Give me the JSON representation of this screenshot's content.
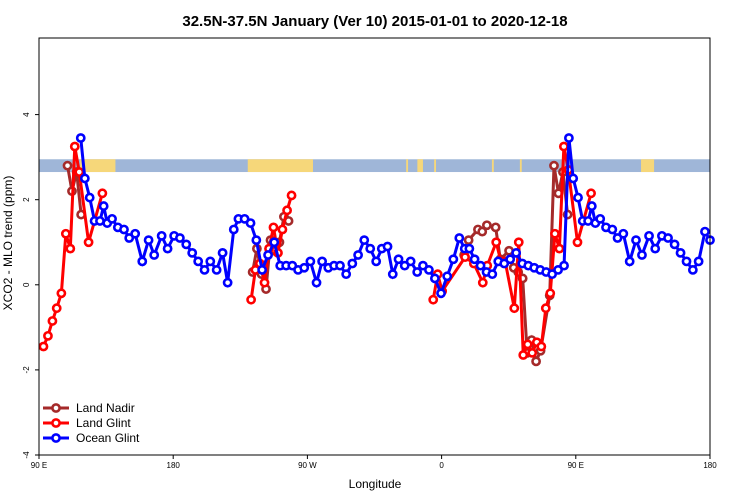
{
  "chart_data": {
    "type": "line",
    "title": "32.5N-37.5N January (Ver 10)   2015-01-01 to 2020-12-18",
    "xlabel": "Longitude",
    "ylabel": "XCO2 - MLO trend (ppm)",
    "xlim": [
      90,
      450
    ],
    "ylim": [
      -4,
      5.8
    ],
    "x_ticks": [
      {
        "value": 90,
        "label": "90 E"
      },
      {
        "value": 162,
        "label": "180"
      },
      {
        "value": 234,
        "label": "90 W"
      },
      {
        "value": 306,
        "label": "0"
      },
      {
        "value": 378,
        "label": "90 E"
      },
      {
        "value": 450,
        "label": "180"
      }
    ],
    "y_ticks": [
      {
        "value": -4,
        "label": "-4"
      },
      {
        "value": -2,
        "label": "-2"
      },
      {
        "value": 0,
        "label": "0"
      },
      {
        "value": 2,
        "label": "2"
      },
      {
        "value": 4,
        "label": "4"
      }
    ],
    "landmask_band": {
      "y_range": [
        2.65,
        2.95
      ],
      "ocean_color": "#9fb6d8",
      "land_color": "#f6d77a",
      "land_segments": [
        [
          112,
          131
        ],
        [
          202,
          237
        ],
        [
          287,
          288
        ],
        [
          293,
          296
        ],
        [
          302,
          303
        ],
        [
          333,
          334
        ],
        [
          348,
          349
        ],
        [
          413,
          420
        ]
      ]
    },
    "legend": {
      "position": "bottom-left"
    },
    "series": [
      {
        "name": "Land Nadir",
        "color": "#a52a2a",
        "points": [
          [
            105.3,
            2.8
          ],
          [
            107.7,
            2.2
          ],
          [
            110.2,
            2.65
          ],
          [
            112.6,
            1.65
          ],
          [
            204.6,
            0.3
          ],
          [
            206.9,
            0.85
          ],
          [
            209.4,
            0.25
          ],
          [
            211.8,
            -0.1
          ],
          [
            214.2,
            1.05
          ],
          [
            216.5,
            0.8
          ],
          [
            219.0,
            1.0
          ],
          [
            221.4,
            1.6
          ],
          [
            223.9,
            1.5
          ],
          [
            318.1,
            0.7
          ],
          [
            320.5,
            1.05
          ],
          [
            325.5,
            1.3
          ],
          [
            327.8,
            1.25
          ],
          [
            330.3,
            1.4
          ],
          [
            335.0,
            1.35
          ],
          [
            337.5,
            0.6
          ],
          [
            342.2,
            0.8
          ],
          [
            344.7,
            0.4
          ],
          [
            347.1,
            0.3
          ],
          [
            349.5,
            0.15
          ],
          [
            351.9,
            -1.6
          ],
          [
            354.3,
            -1.3
          ],
          [
            356.7,
            -1.8
          ],
          [
            359.1,
            -1.55
          ],
          [
            364.0,
            -0.25
          ],
          [
            366.3,
            2.8
          ],
          [
            368.7,
            2.15
          ],
          [
            371.1,
            2.65
          ],
          [
            373.6,
            1.65
          ]
        ]
      },
      {
        "name": "Land Glint",
        "color": "#ff0000",
        "points": [
          [
            92.4,
            -1.45
          ],
          [
            94.8,
            -1.2
          ],
          [
            97.2,
            -0.85
          ],
          [
            99.5,
            -0.55
          ],
          [
            102.0,
            -0.2
          ],
          [
            104.4,
            1.2
          ],
          [
            106.8,
            0.85
          ],
          [
            109.2,
            3.25
          ],
          [
            111.6,
            2.65
          ],
          [
            116.6,
            1.0
          ],
          [
            124.0,
            2.15
          ],
          [
            203.8,
            -0.35
          ],
          [
            206.1,
            0.35
          ],
          [
            208.5,
            0.5
          ],
          [
            211.0,
            0.05
          ],
          [
            213.4,
            0.85
          ],
          [
            215.8,
            1.35
          ],
          [
            218.2,
            0.75
          ],
          [
            220.6,
            1.3
          ],
          [
            223.1,
            1.75
          ],
          [
            225.5,
            2.1
          ],
          [
            301.5,
            -0.35
          ],
          [
            303.9,
            0.25
          ],
          [
            306.3,
            -0.15
          ],
          [
            318.6,
            0.65
          ],
          [
            323.3,
            0.5
          ],
          [
            328.1,
            0.05
          ],
          [
            330.5,
            0.45
          ],
          [
            335.3,
            1.0
          ],
          [
            337.8,
            0.55
          ],
          [
            340.1,
            0.55
          ],
          [
            345.0,
            -0.55
          ],
          [
            347.4,
            1.0
          ],
          [
            349.8,
            -1.65
          ],
          [
            352.2,
            -1.4
          ],
          [
            354.6,
            -1.6
          ],
          [
            357.1,
            -1.35
          ],
          [
            359.5,
            -1.45
          ],
          [
            361.9,
            -0.55
          ],
          [
            364.3,
            -0.2
          ],
          [
            366.8,
            1.2
          ],
          [
            369.2,
            0.85
          ],
          [
            371.6,
            3.25
          ],
          [
            374.0,
            2.7
          ],
          [
            378.9,
            1.0
          ],
          [
            386.2,
            2.15
          ]
        ]
      },
      {
        "name": "Ocean Glint",
        "color": "#0000ff",
        "points": [
          [
            112.4,
            3.45
          ],
          [
            114.6,
            2.5
          ],
          [
            117.2,
            2.05
          ],
          [
            119.8,
            1.5
          ],
          [
            122.7,
            1.5
          ],
          [
            124.7,
            1.85
          ],
          [
            126.6,
            1.45
          ],
          [
            129.2,
            1.55
          ],
          [
            132.3,
            1.35
          ],
          [
            135.6,
            1.3
          ],
          [
            138.4,
            1.1
          ],
          [
            141.6,
            1.2
          ],
          [
            145.4,
            0.55
          ],
          [
            148.8,
            1.05
          ],
          [
            151.8,
            0.7
          ],
          [
            155.8,
            1.15
          ],
          [
            159.0,
            0.85
          ],
          [
            162.5,
            1.15
          ],
          [
            165.6,
            1.1
          ],
          [
            169.0,
            0.95
          ],
          [
            172.2,
            0.75
          ],
          [
            175.4,
            0.55
          ],
          [
            178.8,
            0.35
          ],
          [
            181.9,
            0.55
          ],
          [
            185.3,
            0.35
          ],
          [
            188.5,
            0.75
          ],
          [
            191.2,
            0.05
          ],
          [
            194.5,
            1.3
          ],
          [
            197.0,
            1.55
          ],
          [
            200.3,
            1.55
          ],
          [
            203.5,
            1.45
          ],
          [
            206.6,
            1.05
          ],
          [
            209.7,
            0.35
          ],
          [
            212.9,
            0.7
          ],
          [
            216.2,
            1.0
          ],
          [
            219.4,
            0.45
          ],
          [
            222.6,
            0.45
          ],
          [
            225.9,
            0.45
          ],
          [
            229.0,
            0.35
          ],
          [
            232.3,
            0.4
          ],
          [
            235.6,
            0.55
          ],
          [
            238.9,
            0.05
          ],
          [
            241.9,
            0.55
          ],
          [
            245.2,
            0.4
          ],
          [
            248.3,
            0.45
          ],
          [
            251.5,
            0.45
          ],
          [
            254.8,
            0.25
          ],
          [
            258.1,
            0.5
          ],
          [
            261.2,
            0.7
          ],
          [
            264.5,
            1.05
          ],
          [
            267.7,
            0.85
          ],
          [
            270.9,
            0.55
          ],
          [
            273.9,
            0.85
          ],
          [
            277.0,
            0.9
          ],
          [
            279.8,
            0.25
          ],
          [
            282.9,
            0.6
          ],
          [
            286.2,
            0.45
          ],
          [
            289.4,
            0.55
          ],
          [
            292.9,
            0.3
          ],
          [
            296.0,
            0.45
          ],
          [
            299.2,
            0.35
          ],
          [
            302.4,
            0.15
          ],
          [
            305.7,
            -0.2
          ],
          [
            309.0,
            0.2
          ],
          [
            312.3,
            0.6
          ],
          [
            315.5,
            1.1
          ],
          [
            318.4,
            0.85
          ],
          [
            320.9,
            0.85
          ],
          [
            323.7,
            0.6
          ],
          [
            326.9,
            0.45
          ],
          [
            330.1,
            0.3
          ],
          [
            333.2,
            0.25
          ],
          [
            336.4,
            0.55
          ],
          [
            339.6,
            0.5
          ],
          [
            342.8,
            0.6
          ],
          [
            346.0,
            0.75
          ],
          [
            349.3,
            0.5
          ],
          [
            352.5,
            0.45
          ],
          [
            355.7,
            0.4
          ],
          [
            358.9,
            0.35
          ],
          [
            362.1,
            0.3
          ],
          [
            365.3,
            0.25
          ],
          [
            368.5,
            0.35
          ],
          [
            371.7,
            0.45
          ],
          [
            374.3,
            3.45
          ],
          [
            376.6,
            2.5
          ],
          [
            379.2,
            2.05
          ],
          [
            381.7,
            1.5
          ],
          [
            384.6,
            1.5
          ],
          [
            386.6,
            1.85
          ],
          [
            388.5,
            1.45
          ],
          [
            391.1,
            1.55
          ],
          [
            394.2,
            1.35
          ],
          [
            397.6,
            1.3
          ],
          [
            400.4,
            1.1
          ],
          [
            403.5,
            1.2
          ],
          [
            406.9,
            0.55
          ],
          [
            410.3,
            1.05
          ],
          [
            413.5,
            0.7
          ],
          [
            417.3,
            1.15
          ],
          [
            420.6,
            0.85
          ],
          [
            424.2,
            1.15
          ],
          [
            427.5,
            1.1
          ],
          [
            431.0,
            0.95
          ],
          [
            434.2,
            0.75
          ],
          [
            437.4,
            0.55
          ],
          [
            440.8,
            0.35
          ],
          [
            443.9,
            0.55
          ],
          [
            447.3,
            1.25
          ],
          [
            450.0,
            1.05
          ]
        ]
      }
    ]
  }
}
